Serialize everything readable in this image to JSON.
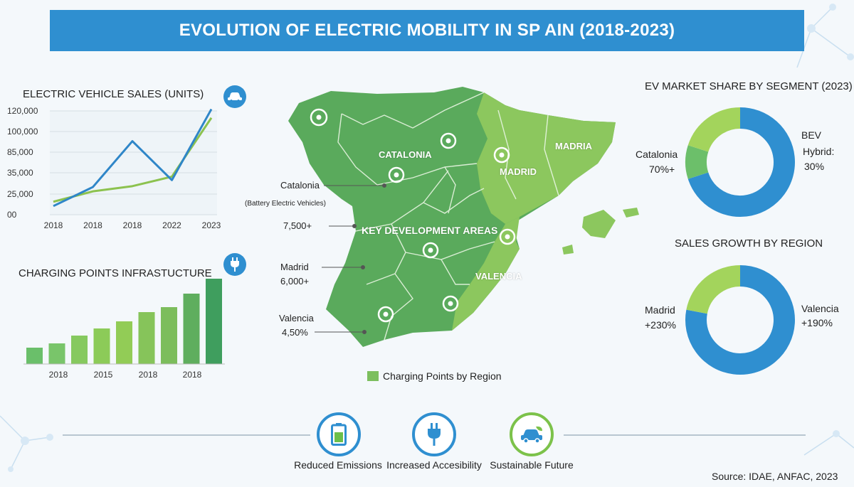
{
  "title": "EVOLUTION OF ELECTRIC MOBILITY IN SP AIN (2018-2023)",
  "sales_chart": {
    "title": "ELECTRIC VEHICLE SALES (UNITS)",
    "icon": "car-icon"
  },
  "charging_chart": {
    "title": "CHARGING POINTS INFRASTUCTURE",
    "icon": "plug-icon"
  },
  "map": {
    "region_labels": [
      "CATALONIA",
      "MADRID",
      "MADRIA",
      "VALENCIA"
    ],
    "center_label": "KEY DEVELOPMENT AREAS",
    "callouts": {
      "catalonia": "Catalonia",
      "bev": "(Battery Electric Vehicles)",
      "catalonia_value": "7,500+",
      "madrid": "Madrid",
      "madrid_value": "6,000+",
      "valencia": "Valencia",
      "valencia_value": "4,50%"
    },
    "legend": "Charging Points by Region",
    "colors": {
      "dark": "#5aaa5c",
      "light": "#8cc75e"
    }
  },
  "share_chart": {
    "title": "EV MARKET SHARE BY SEGMENT (2023)",
    "left_label": "Catalonia",
    "left_value": "70%+",
    "right_label_1": "BEV",
    "right_label_2": "Hybrid:",
    "right_value": "30%"
  },
  "growth_chart": {
    "title": "SALES GROWTH BY REGION",
    "left_label": "Madrid",
    "left_value": "+230%",
    "right_label": "Valencia",
    "right_value": "+190%"
  },
  "footer": {
    "items": [
      {
        "label": "Reduced Emissions",
        "icon": "battery-icon"
      },
      {
        "label": "Increased Accesibility",
        "icon": "plug-icon"
      },
      {
        "label": "Sustainable Future",
        "icon": "eco-car-icon"
      }
    ],
    "source": "Source: IDAE, ANFAC, 2023"
  },
  "chart_data": [
    {
      "type": "line",
      "title": "ELECTRIC VEHICLE SALES (UNITS)",
      "x": [
        "2018",
        "2018",
        "2018",
        "2022",
        "2023"
      ],
      "y_ticks": [
        "00",
        "25,000",
        "35,000",
        "85,000",
        "100,000",
        "120,000"
      ],
      "series": [
        {
          "color": "#2f86c8",
          "values": [
            10000,
            32000,
            85000,
            40000,
            122000
          ]
        },
        {
          "color": "#8cc24f",
          "values": [
            15000,
            27000,
            33000,
            44000,
            112000
          ]
        }
      ],
      "ylim": [
        0,
        120000
      ]
    },
    {
      "type": "bar",
      "title": "CHARGING POINTS INFRASTUCTURE",
      "tick_labels": [
        "2018",
        "2015",
        "2018",
        "2018"
      ],
      "values": [
        2300,
        2900,
        4000,
        5000,
        6000,
        7300,
        8000,
        9900,
        12000
      ],
      "ylim": [
        0,
        12000
      ]
    },
    {
      "type": "pie",
      "title": "EV MARKET SHARE BY SEGMENT (2023)",
      "slices": [
        {
          "color": "#2f8fd0",
          "value": 70
        },
        {
          "color": "#6cbf6a",
          "value": 10
        },
        {
          "color": "#a3d45c",
          "value": 20
        }
      ]
    },
    {
      "type": "pie",
      "title": "SALES GROWTH BY REGION",
      "slices": [
        {
          "color": "#2f8fd0",
          "value": 78
        },
        {
          "color": "#a3d45c",
          "value": 22
        }
      ]
    }
  ]
}
